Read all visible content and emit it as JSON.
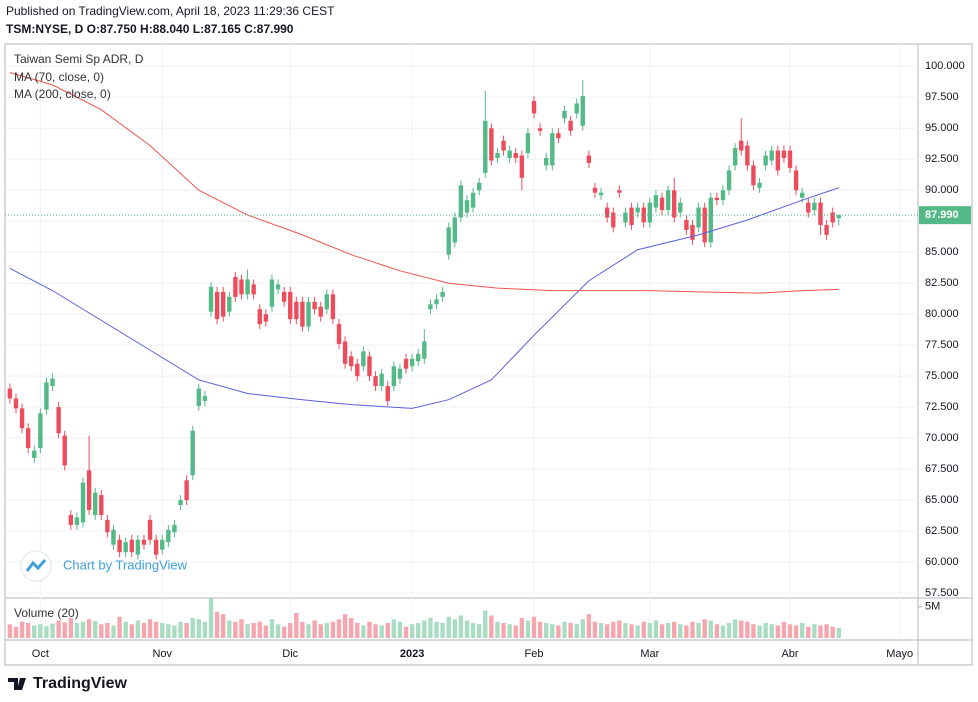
{
  "header": {
    "published": "Published on TradingView.com, April 18, 2023 11:29:36 CEST",
    "symbol_line": "TSM:NYSE, D O:87.750 H:88.040 L:87.165 C:87.990"
  },
  "chart_data": {
    "type": "candlestick",
    "title": "Taiwan Semi Sp ADR, D",
    "up_color": "#53b987",
    "down_color": "#eb4d5c",
    "open": [
      74.0,
      73.2,
      72.4,
      70.8,
      68.4,
      69.2,
      72.3,
      74.2,
      72.5,
      70.2,
      63.8,
      63.0,
      63.2,
      67.4,
      63.8,
      65.4,
      63.4,
      61.4,
      61.8,
      60.8,
      61.8,
      60.6,
      61.8,
      63.4,
      61.8,
      61.0,
      61.6,
      62.4,
      64.6,
      66.6,
      67.0,
      72.6,
      73.0,
      80.2,
      81.8,
      81.8,
      80.2,
      83.0,
      82.8,
      81.6,
      82.4,
      80.4,
      80.0,
      80.6,
      82.0,
      81.8,
      81.8,
      81.0,
      81.0,
      79.0,
      81.0,
      80.6,
      80.4,
      81.6,
      79.2,
      77.8,
      76.6,
      76.0,
      75.8,
      76.6,
      75.0,
      74.2,
      74.2,
      74.2,
      74.8,
      76.4,
      75.8,
      76.2,
      76.4,
      80.4,
      80.8,
      81.4,
      84.8,
      85.8,
      87.8,
      88.2,
      88.6,
      90.0,
      91.4,
      95.0,
      92.6,
      94.0,
      92.6,
      93.0,
      92.8,
      93.0,
      97.2,
      95.0,
      92.0,
      92.0,
      94.6,
      95.8,
      95.6,
      96.2,
      95.2,
      92.8,
      90.2,
      89.6,
      88.6,
      88.2,
      90.0,
      87.4,
      88.6,
      88.2,
      88.6,
      87.4,
      88.6,
      89.4,
      88.4,
      90.0,
      88.2,
      87.6,
      87.2,
      87.0,
      88.6,
      85.8,
      89.4,
      89.2,
      90.0,
      92.0,
      94.0,
      93.6,
      92.0,
      90.2,
      92.0,
      92.4,
      93.2,
      93.2,
      93.2,
      91.6,
      89.4,
      89.0,
      88.4,
      89.0,
      87.2,
      88.2,
      87.75
    ],
    "high": [
      74.4,
      73.6,
      72.8,
      71.2,
      69.4,
      72.4,
      74.9,
      75.2,
      72.9,
      70.6,
      64.2,
      64.0,
      66.8,
      70.2,
      66.0,
      65.8,
      63.8,
      63.0,
      62.2,
      62.0,
      62.2,
      62.2,
      62.2,
      63.8,
      62.2,
      62.2,
      63.0,
      63.4,
      65.4,
      67.0,
      71.0,
      74.4,
      73.8,
      82.6,
      82.2,
      82.2,
      81.8,
      83.4,
      83.2,
      83.6,
      82.8,
      80.8,
      80.4,
      83.2,
      82.8,
      82.2,
      82.2,
      81.4,
      81.4,
      81.4,
      81.4,
      81.0,
      82.0,
      82.0,
      79.6,
      78.2,
      77.0,
      76.4,
      77.4,
      77.0,
      75.4,
      75.6,
      74.6,
      76.2,
      76.0,
      76.8,
      76.8,
      77.2,
      78.8,
      81.2,
      81.6,
      82.2,
      87.4,
      88.2,
      90.8,
      89.6,
      90.2,
      91.0,
      98.0,
      95.4,
      93.4,
      94.4,
      93.6,
      93.4,
      93.2,
      95.0,
      97.6,
      95.4,
      93.0,
      95.0,
      95.0,
      96.8,
      96.0,
      97.4,
      98.9,
      93.2,
      90.6,
      90.2,
      89.0,
      88.6,
      90.4,
      88.6,
      89.0,
      89.0,
      89.0,
      89.4,
      90.0,
      89.8,
      90.4,
      91.0,
      89.4,
      88.0,
      87.6,
      89.0,
      89.0,
      89.8,
      89.8,
      90.4,
      92.0,
      93.8,
      95.8,
      94.0,
      92.4,
      91.0,
      93.2,
      93.6,
      93.6,
      93.6,
      93.6,
      92.0,
      90.2,
      89.4,
      89.4,
      89.4,
      87.6,
      88.6,
      88.04
    ],
    "low": [
      72.8,
      72.0,
      70.4,
      68.8,
      68.0,
      68.8,
      71.9,
      73.8,
      70.0,
      67.4,
      62.6,
      62.6,
      62.8,
      63.8,
      63.4,
      63.4,
      62.0,
      61.0,
      60.4,
      60.4,
      60.4,
      60.2,
      61.0,
      61.4,
      60.2,
      60.6,
      61.2,
      62.0,
      64.2,
      64.6,
      66.6,
      72.2,
      72.6,
      79.8,
      79.2,
      79.4,
      79.8,
      81.0,
      81.2,
      81.2,
      81.2,
      78.8,
      79.0,
      80.2,
      81.6,
      80.6,
      79.2,
      79.2,
      78.6,
      78.6,
      80.0,
      79.4,
      80.0,
      79.2,
      77.2,
      75.6,
      75.4,
      74.6,
      75.4,
      74.6,
      73.8,
      73.8,
      72.6,
      73.8,
      74.4,
      75.2,
      75.4,
      75.8,
      76.0,
      80.0,
      80.4,
      81.0,
      84.4,
      85.4,
      87.4,
      87.8,
      88.2,
      89.6,
      91.0,
      92.0,
      92.2,
      92.8,
      92.2,
      92.2,
      90.0,
      92.6,
      95.8,
      94.4,
      91.6,
      91.6,
      93.8,
      95.4,
      94.4,
      95.8,
      94.8,
      91.8,
      89.4,
      89.2,
      87.4,
      86.6,
      89.4,
      87.0,
      86.8,
      87.8,
      87.0,
      87.0,
      88.2,
      88.0,
      88.0,
      87.4,
      87.8,
      86.4,
      85.6,
      86.6,
      85.4,
      85.4,
      88.8,
      88.8,
      89.6,
      91.6,
      92.8,
      91.6,
      90.0,
      89.8,
      91.6,
      92.0,
      91.2,
      92.2,
      91.4,
      89.6,
      89.0,
      87.8,
      88.0,
      86.4,
      86.0,
      87.0,
      87.165
    ],
    "close": [
      73.2,
      72.4,
      70.8,
      69.2,
      69.0,
      72.0,
      74.5,
      74.8,
      70.4,
      67.8,
      63.0,
      63.6,
      66.4,
      64.2,
      65.6,
      63.8,
      62.4,
      62.6,
      60.8,
      61.6,
      60.8,
      61.8,
      61.4,
      61.8,
      60.6,
      61.8,
      62.6,
      63.0,
      65.0,
      65.0,
      70.6,
      74.0,
      73.4,
      82.2,
      79.6,
      79.8,
      81.4,
      81.4,
      81.6,
      82.8,
      81.6,
      79.2,
      79.4,
      82.8,
      82.4,
      81.0,
      79.6,
      79.6,
      79.0,
      81.0,
      80.4,
      79.8,
      81.6,
      79.6,
      77.6,
      76.0,
      75.8,
      75.0,
      77.0,
      75.0,
      74.2,
      75.2,
      73.0,
      75.8,
      75.6,
      75.6,
      76.4,
      76.8,
      77.8,
      80.8,
      81.2,
      81.8,
      87.0,
      87.8,
      90.4,
      89.2,
      89.8,
      90.6,
      95.6,
      92.4,
      93.0,
      93.2,
      93.2,
      92.6,
      91.0,
      94.6,
      96.2,
      94.8,
      92.6,
      94.6,
      94.2,
      96.4,
      94.8,
      97.0,
      97.6,
      92.2,
      89.8,
      89.8,
      87.8,
      87.0,
      89.8,
      88.2,
      87.2,
      88.6,
      87.4,
      89.0,
      89.6,
      88.4,
      90.0,
      87.8,
      89.0,
      86.8,
      86.0,
      88.6,
      85.8,
      89.4,
      89.2,
      90.0,
      91.6,
      93.4,
      93.2,
      92.0,
      90.4,
      90.6,
      92.8,
      93.2,
      91.6,
      92.6,
      91.8,
      90.0,
      89.8,
      88.2,
      89.0,
      87.2,
      86.4,
      87.4,
      87.99
    ],
    "last_price": {
      "value": 87.99,
      "label": "87.990"
    },
    "ylim": [
      57.1,
      101.8
    ],
    "yticks": [
      {
        "value": 57.5,
        "label": "57.500"
      },
      {
        "value": 60,
        "label": "60.000"
      },
      {
        "value": 62.5,
        "label": "62.500"
      },
      {
        "value": 65,
        "label": "65.000"
      },
      {
        "value": 67.5,
        "label": "67.500"
      },
      {
        "value": 70,
        "label": "70.000"
      },
      {
        "value": 72.5,
        "label": "72.500"
      },
      {
        "value": 75,
        "label": "75.000"
      },
      {
        "value": 77.5,
        "label": "77.500"
      },
      {
        "value": 80,
        "label": "80.000"
      },
      {
        "value": 82.5,
        "label": "82.500"
      },
      {
        "value": 85,
        "label": "85.000"
      },
      {
        "value": 87.5,
        "label": "87.500"
      },
      {
        "value": 90,
        "label": "90.000"
      },
      {
        "value": 92.5,
        "label": "92.500"
      },
      {
        "value": 95,
        "label": "95.000"
      },
      {
        "value": 97.5,
        "label": "97.500"
      },
      {
        "value": 100,
        "label": "100.000"
      }
    ],
    "xlim": [
      -0.8,
      149
    ],
    "xticks": [
      {
        "value": 5,
        "label": "Oct"
      },
      {
        "value": 25,
        "label": "Nov"
      },
      {
        "value": 46,
        "label": "Dic"
      },
      {
        "value": 66,
        "label": "2023"
      },
      {
        "value": 86,
        "label": "Feb"
      },
      {
        "value": 105,
        "label": "Mar"
      },
      {
        "value": 128,
        "label": "Abr"
      },
      {
        "value": 146,
        "label": "Mayo"
      }
    ],
    "overlays": [
      {
        "name": "MA (70, close, 0)",
        "color": "#5b5fe0",
        "x": [
          0,
          7,
          15,
          23,
          31,
          39,
          48,
          56,
          66,
          72,
          79,
          86,
          95,
          103,
          113,
          121,
          130,
          136
        ],
        "values": [
          83.7,
          81.9,
          79.5,
          77.1,
          74.7,
          73.6,
          73.1,
          72.7,
          72.4,
          73.1,
          74.7,
          78.3,
          82.7,
          85.2,
          86.4,
          87.6,
          89.2,
          90.2
        ]
      },
      {
        "name": "MA (200, close, 0)",
        "color": "#f0544f",
        "x": [
          0,
          7,
          15,
          23,
          31,
          39,
          48,
          56,
          64,
          72,
          80,
          89,
          97,
          105,
          113,
          123,
          130,
          136
        ],
        "values": [
          99.5,
          98.5,
          96.5,
          93.6,
          90.0,
          88.0,
          86.4,
          84.8,
          83.5,
          82.5,
          82.1,
          81.9,
          81.9,
          81.9,
          81.8,
          81.7,
          81.9,
          82.0
        ]
      }
    ],
    "volume": {
      "name": "Volume (20)",
      "ylim": [
        0,
        6.4
      ],
      "yticks": [
        {
          "value": 5,
          "label": "5M"
        }
      ],
      "values": [
        2.2,
        1.8,
        2.6,
        2.4,
        2.0,
        2.2,
        1.9,
        2.3,
        2.8,
        2.5,
        3.2,
        2.4,
        2.6,
        3.0,
        2.7,
        2.2,
        2.4,
        2.0,
        3.4,
        2.6,
        2.2,
        2.8,
        2.4,
        3.0,
        2.6,
        2.4,
        2.2,
        2.0,
        2.6,
        2.4,
        3.2,
        3.0,
        2.6,
        6.4,
        4.2,
        3.8,
        2.8,
        2.6,
        3.0,
        2.2,
        2.4,
        2.6,
        2.0,
        3.0,
        2.2,
        1.8,
        2.4,
        4.0,
        2.6,
        2.2,
        2.8,
        2.2,
        2.4,
        2.6,
        3.0,
        3.8,
        3.2,
        2.4,
        2.0,
        2.6,
        2.2,
        2.0,
        2.4,
        3.0,
        2.6,
        1.8,
        2.2,
        2.4,
        2.8,
        3.2,
        2.6,
        2.4,
        3.4,
        3.0,
        3.6,
        2.8,
        2.4,
        2.2,
        4.4,
        3.6,
        2.6,
        2.4,
        2.2,
        2.0,
        3.2,
        2.8,
        3.4,
        2.6,
        2.4,
        2.2,
        2.0,
        2.6,
        2.4,
        2.2,
        3.0,
        3.8,
        2.6,
        2.4,
        2.2,
        2.6,
        2.8,
        2.4,
        2.2,
        2.0,
        2.6,
        2.4,
        2.8,
        2.2,
        2.4,
        2.6,
        2.2,
        2.0,
        2.6,
        2.4,
        3.0,
        2.8,
        2.2,
        2.0,
        2.4,
        3.0,
        2.8,
        2.6,
        2.2,
        2.0,
        2.4,
        2.2,
        2.0,
        2.6,
        2.2,
        2.0,
        2.4,
        1.8,
        2.2,
        2.0,
        2.2,
        1.8,
        1.6
      ]
    },
    "watermark": "Chart by TradingView"
  },
  "footer": {
    "brand": "TradingView"
  }
}
